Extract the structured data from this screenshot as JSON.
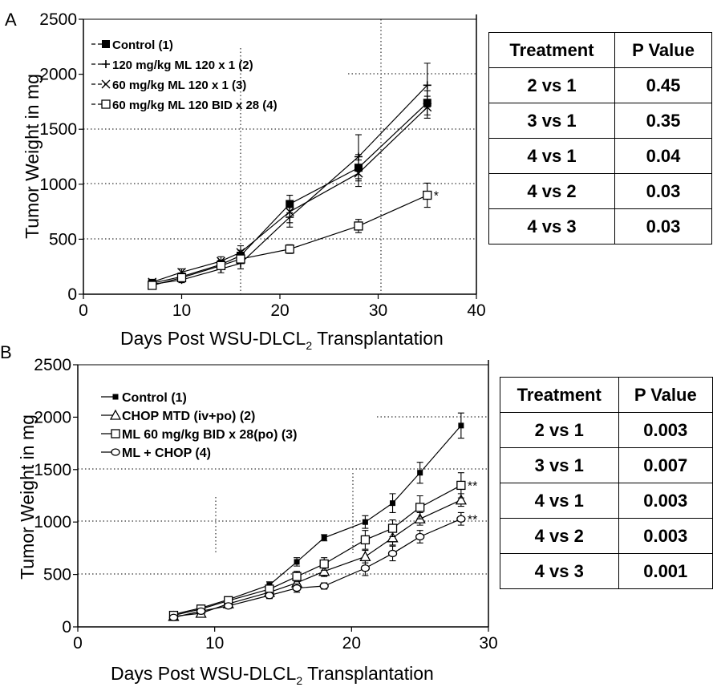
{
  "chart_data": [
    {
      "type": "line",
      "panel_label": "A",
      "xlabel_main": "Days Post WSU-DLCL",
      "xlabel_sub": "2",
      "xlabel_tail": " Transplantation",
      "ylabel": "Tumor Weight in mg",
      "xlim": [
        0,
        40
      ],
      "ylim": [
        0,
        2500
      ],
      "xticks": [
        0,
        10,
        20,
        30,
        40
      ],
      "yticks": [
        0,
        500,
        1000,
        1500,
        2000,
        2500
      ],
      "legend_position": "top-left",
      "series": [
        {
          "name": "Control (1)",
          "marker": "filled-square",
          "x": [
            7,
            10,
            14,
            16,
            21,
            28,
            35
          ],
          "y": [
            100,
            160,
            270,
            350,
            820,
            1150,
            1740
          ],
          "err": [
            30,
            30,
            40,
            50,
            80,
            120,
            110
          ]
        },
        {
          "name": "120 mg/kg ML 120 x 1 (2)",
          "marker": "plus",
          "x": [
            7,
            10,
            14,
            16,
            21,
            28,
            35
          ],
          "y": [
            90,
            130,
            230,
            280,
            700,
            1250,
            1900
          ],
          "err": [
            20,
            25,
            35,
            50,
            90,
            200,
            200
          ]
        },
        {
          "name": "60 mg/kg ML 120 x 1 (3)",
          "marker": "cross",
          "x": [
            7,
            10,
            14,
            16,
            21,
            28,
            35
          ],
          "y": [
            110,
            200,
            300,
            380,
            750,
            1100,
            1700
          ],
          "err": [
            25,
            30,
            40,
            60,
            100,
            120,
            100
          ]
        },
        {
          "name": "60 mg/kg ML 120 BID x 28 (4)",
          "marker": "open-square",
          "x": [
            7,
            10,
            14,
            16,
            21,
            28,
            35
          ],
          "y": [
            80,
            150,
            260,
            320,
            410,
            620,
            900
          ],
          "err": [
            20,
            25,
            30,
            40,
            40,
            60,
            110
          ],
          "annotation": "*"
        }
      ],
      "table": {
        "headers": [
          "Treatment",
          "P Value"
        ],
        "rows": [
          [
            "2 vs 1",
            "0.45"
          ],
          [
            "3 vs 1",
            "0.35"
          ],
          [
            "4 vs 1",
            "0.04"
          ],
          [
            "4 vs 2",
            "0.03"
          ],
          [
            "4 vs 3",
            "0.03"
          ]
        ]
      }
    },
    {
      "type": "line",
      "panel_label": "B",
      "xlabel_main": "Days Post WSU-DLCL",
      "xlabel_sub": "2",
      "xlabel_tail": " Transplantation",
      "ylabel": "Tumor Weight in mg",
      "xlim": [
        0,
        30
      ],
      "ylim": [
        0,
        2500
      ],
      "xticks": [
        0,
        10,
        20,
        30
      ],
      "yticks": [
        0,
        500,
        1000,
        1500,
        2000,
        2500
      ],
      "legend_position": "top-left",
      "series": [
        {
          "name": "Control (1)",
          "marker": "small-filled-square",
          "x": [
            7,
            9,
            11,
            14,
            16,
            18,
            21,
            23,
            25,
            28
          ],
          "y": [
            120,
            180,
            260,
            400,
            620,
            850,
            1000,
            1180,
            1470,
            1920
          ],
          "err": [
            20,
            20,
            25,
            30,
            40,
            30,
            60,
            90,
            100,
            120
          ]
        },
        {
          "name": "CHOP MTD (iv+po) (2)",
          "marker": "open-triangle",
          "x": [
            7,
            9,
            11,
            14,
            16,
            18,
            21,
            23,
            25,
            28
          ],
          "y": [
            100,
            130,
            220,
            330,
            420,
            530,
            670,
            850,
            1030,
            1210
          ],
          "err": [
            20,
            20,
            25,
            30,
            40,
            50,
            60,
            70,
            60,
            60
          ]
        },
        {
          "name": "ML 60 mg/kg BID x 28(po) (3)",
          "marker": "open-square",
          "x": [
            7,
            9,
            11,
            14,
            16,
            18,
            21,
            23,
            25,
            28
          ],
          "y": [
            110,
            170,
            250,
            360,
            480,
            600,
            830,
            940,
            1140,
            1350
          ],
          "err": [
            20,
            20,
            25,
            30,
            50,
            60,
            90,
            80,
            110,
            120
          ],
          "annotation": "**"
        },
        {
          "name": "ML + CHOP (4)",
          "marker": "open-circle",
          "x": [
            7,
            9,
            11,
            14,
            16,
            18,
            21,
            23,
            25,
            28
          ],
          "y": [
            90,
            150,
            200,
            300,
            370,
            390,
            560,
            700,
            860,
            1030
          ],
          "err": [
            20,
            20,
            25,
            30,
            40,
            30,
            70,
            70,
            60,
            60
          ],
          "annotation": "**"
        }
      ],
      "table": {
        "headers": [
          "Treatment",
          "P Value"
        ],
        "rows": [
          [
            "2 vs 1",
            "0.003"
          ],
          [
            "3 vs 1",
            "0.007"
          ],
          [
            "4 vs 1",
            "0.003"
          ],
          [
            "4 vs 2",
            "0.003"
          ],
          [
            "4 vs 3",
            "0.001"
          ]
        ]
      }
    }
  ]
}
